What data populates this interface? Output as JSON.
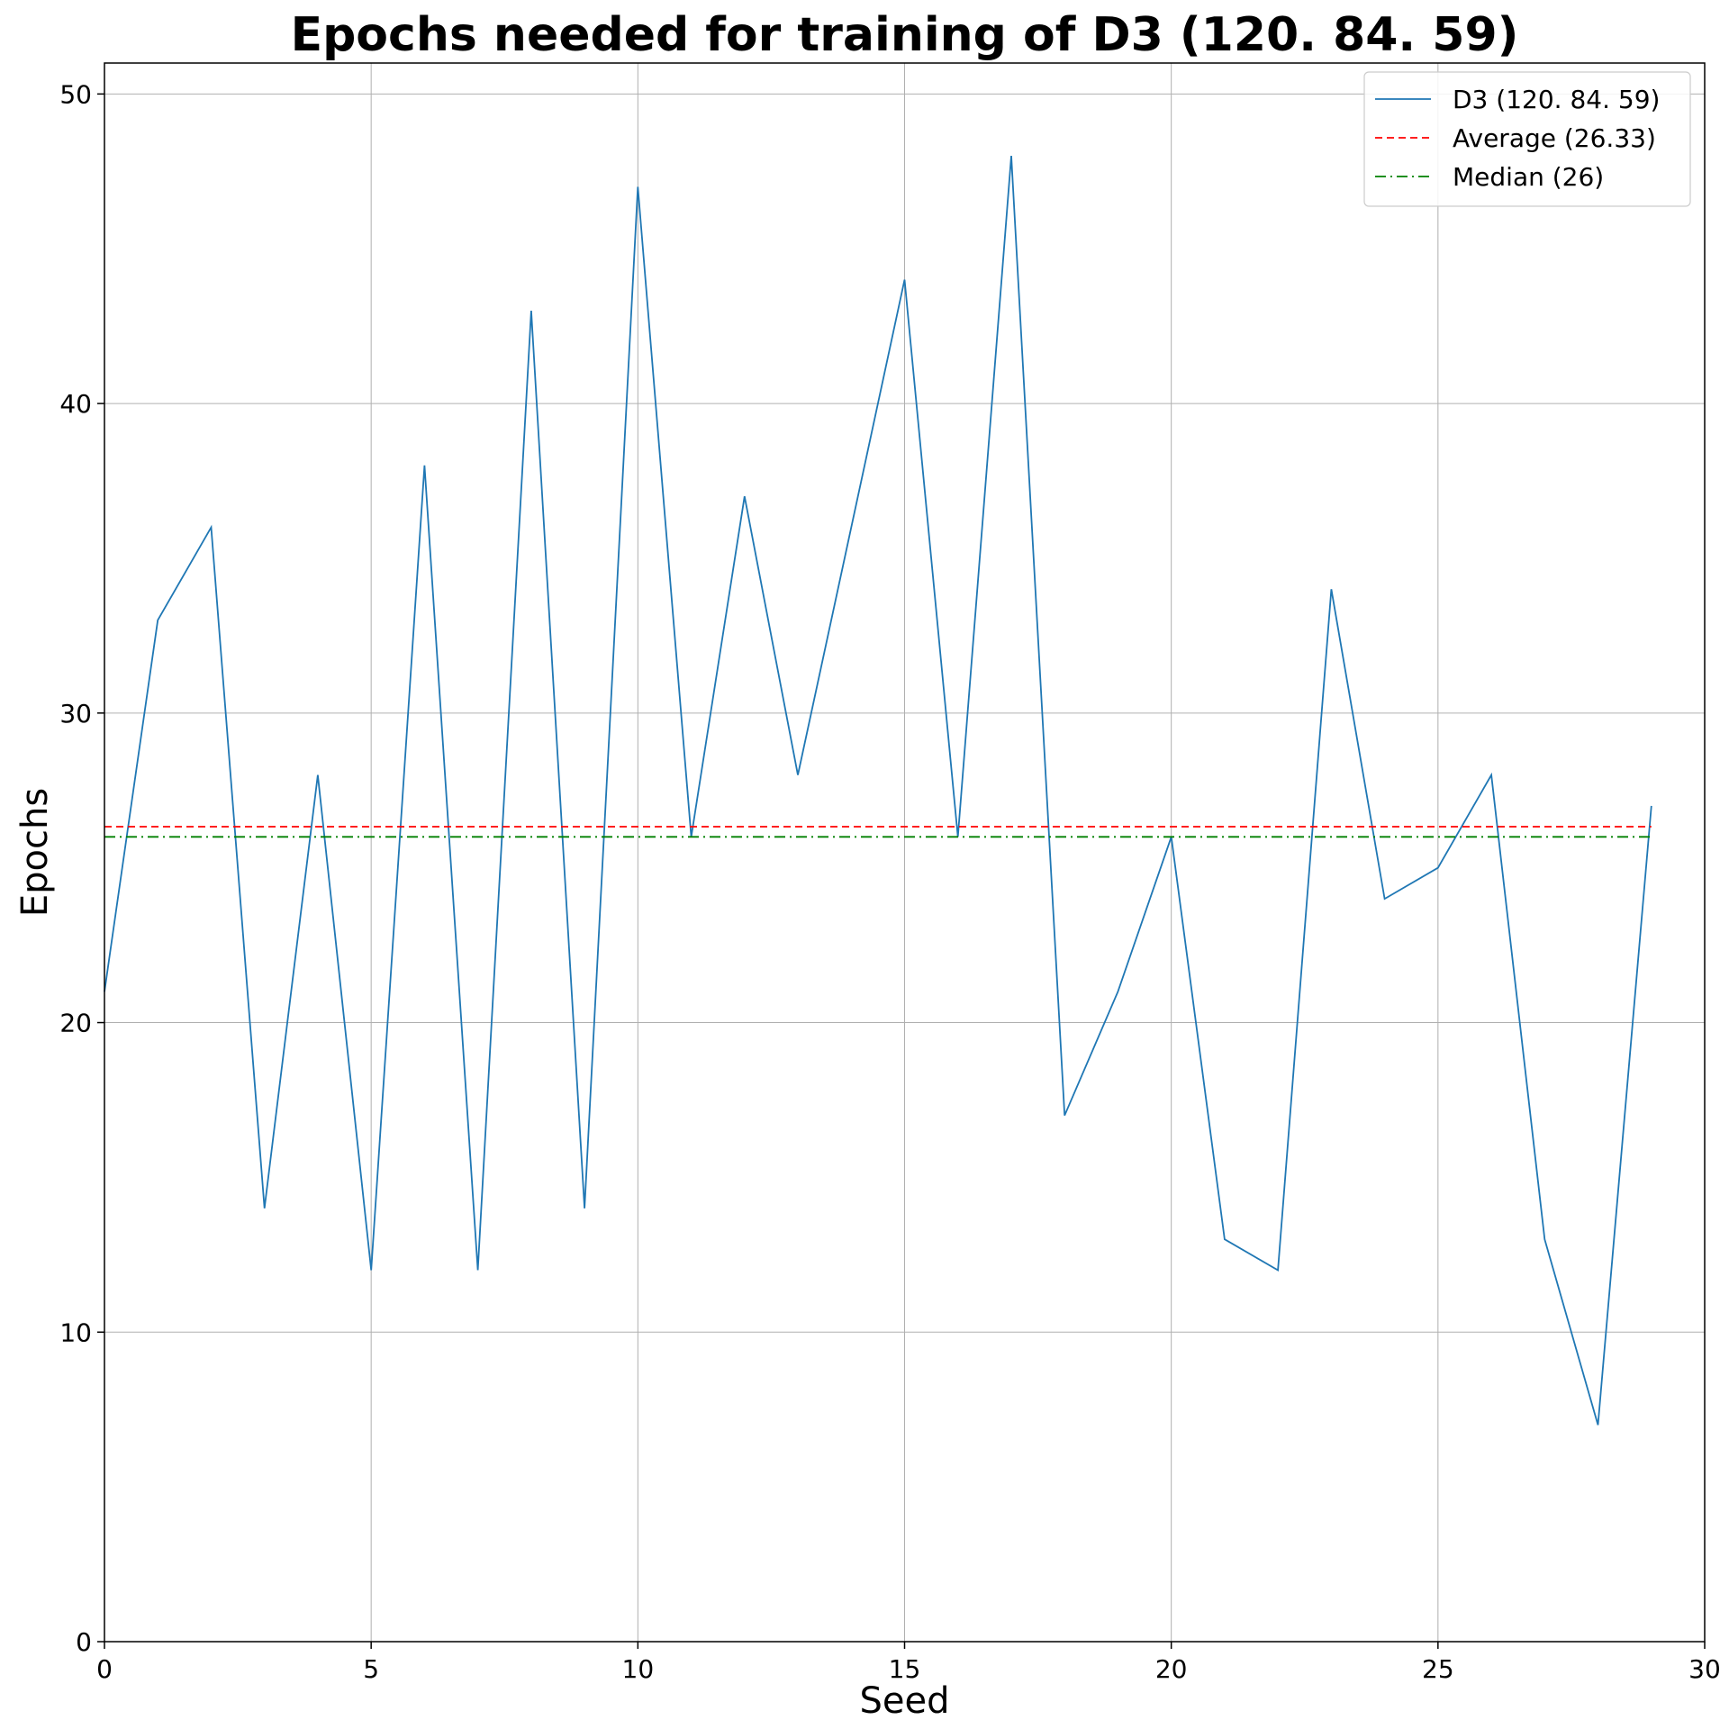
{
  "chart_data": {
    "type": "line",
    "title": "Epochs needed for training of D3 (120. 84. 59)",
    "xlabel": "Seed",
    "ylabel": "Epochs",
    "xlim": [
      0,
      30
    ],
    "ylim": [
      0,
      51
    ],
    "xticks": [
      0,
      5,
      10,
      15,
      20,
      25,
      30
    ],
    "yticks": [
      0,
      10,
      20,
      30,
      40,
      50
    ],
    "grid": true,
    "legend_position": "top-right",
    "series": [
      {
        "name": "D3 (120. 84. 59)",
        "color": "#1f77b4",
        "style": "solid",
        "x": [
          0,
          1,
          2,
          3,
          4,
          5,
          6,
          7,
          8,
          9,
          10,
          11,
          12,
          13,
          14,
          15,
          16,
          17,
          18,
          19,
          20,
          21,
          22,
          23,
          24,
          25,
          26,
          27,
          28,
          29
        ],
        "values": [
          21,
          33,
          36,
          14,
          28,
          12,
          38,
          12,
          43,
          14,
          47,
          26,
          37,
          28,
          36,
          44,
          26,
          48,
          17,
          21,
          26,
          13,
          12,
          34,
          24,
          25,
          28,
          13,
          7,
          27
        ]
      },
      {
        "name": "Average (26.33)",
        "color": "#ff0000",
        "style": "dashed",
        "x": [
          0,
          29
        ],
        "values": [
          26.33,
          26.33
        ]
      },
      {
        "name": "Median (26)",
        "color": "#008000",
        "style": "dashdot",
        "x": [
          0,
          29
        ],
        "values": [
          26,
          26
        ]
      }
    ]
  }
}
